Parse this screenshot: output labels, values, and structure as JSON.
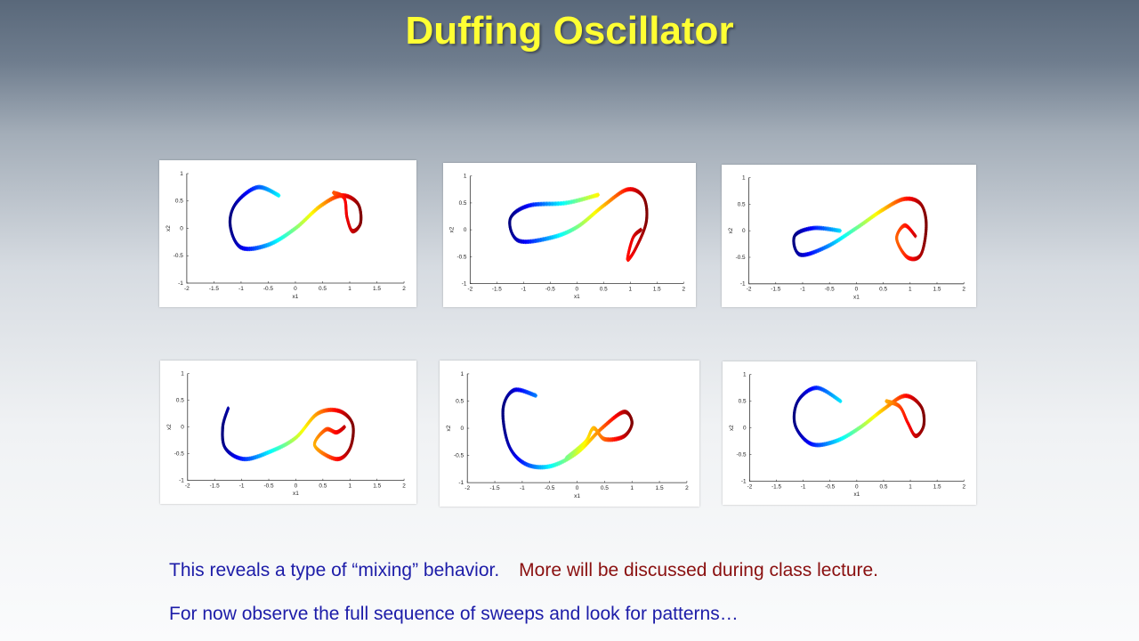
{
  "title": "Duffing Oscillator",
  "captions": {
    "line1_blue": "This reveals a type of “mixing” behavior.",
    "line1_red": "More will be discussed during class lecture.",
    "line2": "For now observe the full sequence of sweeps and look for patterns…"
  },
  "colors": {
    "title": "#ffff33",
    "blue_text": "#1c1ca8",
    "red_text": "#8a1010"
  },
  "plot_axes": {
    "xlabel": "x1",
    "ylabel": "x2",
    "x_ticks": [
      "-2",
      "-1.5",
      "-1",
      "-0.5",
      "0",
      "0.5",
      "1",
      "1.5",
      "2"
    ],
    "y_ticks": [
      "1",
      "0.5",
      "0",
      "-0.5",
      "-1"
    ],
    "xlim": [
      -2,
      2
    ],
    "ylim": [
      -1,
      1
    ]
  },
  "chart_data": [
    {
      "type": "scatter",
      "panel": 1,
      "xlim": [
        -2,
        2
      ],
      "ylim": [
        -1,
        1
      ],
      "xlabel": "x1",
      "ylabel": "x2",
      "colormap": "jet"
    },
    {
      "type": "scatter",
      "panel": 2,
      "xlim": [
        -2,
        2
      ],
      "ylim": [
        -1,
        1
      ],
      "xlabel": "x1",
      "ylabel": "x2",
      "colormap": "jet"
    },
    {
      "type": "scatter",
      "panel": 3,
      "xlim": [
        -2,
        2
      ],
      "ylim": [
        -1,
        1
      ],
      "xlabel": "x1",
      "ylabel": "x2",
      "colormap": "jet"
    },
    {
      "type": "scatter",
      "panel": 4,
      "xlim": [
        -2,
        2
      ],
      "ylim": [
        -1,
        1
      ],
      "xlabel": "x1",
      "ylabel": "x2",
      "colormap": "jet"
    },
    {
      "type": "scatter",
      "panel": 5,
      "xlim": [
        -2,
        2
      ],
      "ylim": [
        -1,
        1
      ],
      "xlabel": "x1",
      "ylabel": "x2",
      "colormap": "jet"
    },
    {
      "type": "scatter",
      "panel": 6,
      "xlim": [
        -2,
        2
      ],
      "ylim": [
        -1,
        1
      ],
      "xlabel": "x1",
      "ylabel": "x2",
      "colormap": "jet"
    }
  ]
}
